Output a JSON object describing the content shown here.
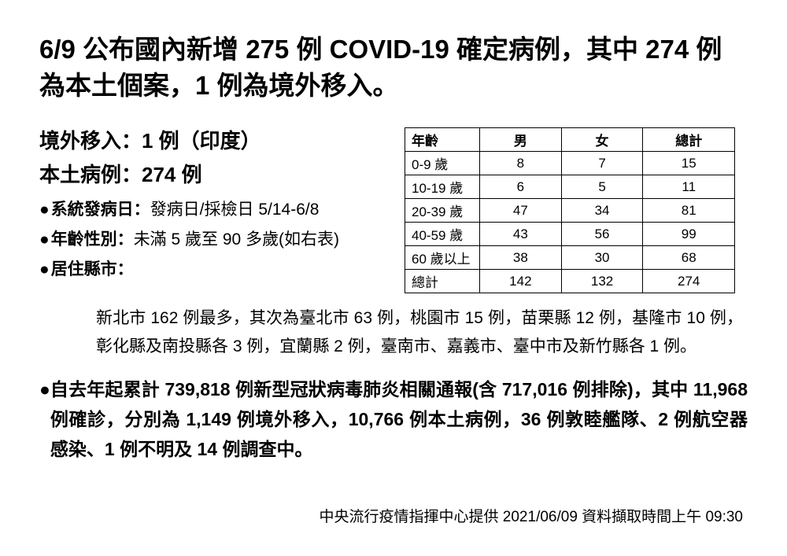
{
  "title": "6/9 公布國內新增 275 例 COVID-19 確定病例，其中 274 例為本土個案，1 例為境外移入。",
  "imported": {
    "heading": "境外移入：1 例（印度）"
  },
  "local": {
    "heading": "本土病例：274 例"
  },
  "bullets": {
    "onset_label": "系統發病日：",
    "onset_value": "發病日/採檢日 5/14-6/8",
    "age_label": "年齡性別：",
    "age_value": "未滿 5 歲至 90 多歲(如右表)",
    "county_label": "居住縣市："
  },
  "age_table": {
    "headers": [
      "年齡",
      "男",
      "女",
      "總計"
    ],
    "rows": [
      [
        "0-9 歲",
        "8",
        "7",
        "15"
      ],
      [
        "10-19 歲",
        "6",
        "5",
        "11"
      ],
      [
        "20-39 歲",
        "47",
        "34",
        "81"
      ],
      [
        "40-59 歲",
        "43",
        "56",
        "99"
      ],
      [
        "60 歲以上",
        "38",
        "30",
        "68"
      ],
      [
        "總計",
        "142",
        "132",
        "274"
      ]
    ]
  },
  "county_text": "新北市 162 例最多，其次為臺北市 63 例，桃園市 15 例，苗栗縣 12 例，基隆市 10 例，彰化縣及南投縣各 3 例，宜蘭縣 2 例，臺南市、嘉義市、臺中市及新竹縣各 1 例。",
  "summary_text": "自去年起累計 739,818 例新型冠狀病毒肺炎相關通報(含 717,016 例排除)，其中 11,968 例確診，分別為 1,149 例境外移入，10,766 例本土病例，36 例敦睦艦隊、2 例航空器感染、1 例不明及 14 例調查中。",
  "footer": "中央流行疫情指揮中心提供  2021/06/09  資料擷取時間上午 09:30",
  "bullet_char": "●"
}
